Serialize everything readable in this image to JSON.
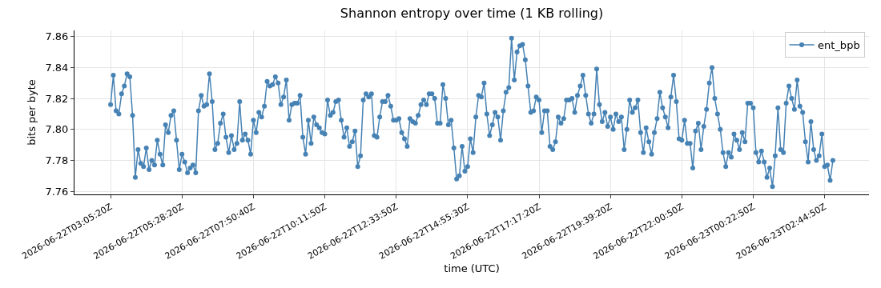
{
  "chart_data": {
    "type": "line",
    "title": "Shannon entropy over time (1 KB rolling)",
    "xlabel": "time (UTC)",
    "ylabel": "bits per byte",
    "categories": [
      "2026-06-22T03:05:20Z",
      null,
      null,
      null,
      null,
      null,
      null,
      null,
      null,
      null,
      null,
      null,
      null,
      null,
      null,
      null,
      null,
      null,
      null,
      null,
      null,
      null,
      null,
      null,
      null,
      null,
      "2026-06-22T05:28:20Z",
      null,
      null,
      null,
      null,
      null,
      null,
      null,
      null,
      null,
      null,
      null,
      null,
      null,
      null,
      null,
      null,
      null,
      null,
      null,
      null,
      null,
      null,
      null,
      null,
      null,
      "2026-06-22T07:50:40Z",
      null,
      null,
      null,
      null,
      null,
      null,
      null,
      null,
      null,
      null,
      null,
      null,
      null,
      null,
      null,
      null,
      null,
      null,
      null,
      null,
      null,
      null,
      null,
      null,
      null,
      "2026-06-22T10:11:50Z",
      null,
      null,
      null,
      null,
      null,
      null,
      null,
      null,
      null,
      null,
      null,
      null,
      null,
      null,
      null,
      null,
      null,
      null,
      null,
      null,
      null,
      null,
      null,
      null,
      null,
      "2026-06-22T12:33:50Z",
      null,
      null,
      null,
      null,
      null,
      null,
      null,
      null,
      null,
      null,
      null,
      null,
      null,
      null,
      null,
      null,
      null,
      null,
      null,
      null,
      null,
      null,
      null,
      null,
      null,
      "2026-06-22T14:55:30Z",
      null,
      null,
      null,
      null,
      null,
      null,
      null,
      null,
      null,
      null,
      null,
      null,
      null,
      null,
      null,
      null,
      null,
      null,
      null,
      null,
      null,
      null,
      null,
      null,
      null,
      "2026-06-22T17:17:20Z",
      null,
      null,
      null,
      null,
      null,
      null,
      null,
      null,
      null,
      null,
      null,
      null,
      null,
      null,
      null,
      null,
      null,
      null,
      null,
      null,
      null,
      null,
      null,
      null,
      null,
      "2026-06-22T19:39:20Z",
      null,
      null,
      null,
      null,
      null,
      null,
      null,
      null,
      null,
      null,
      null,
      null,
      null,
      null,
      null,
      null,
      null,
      null,
      null,
      null,
      null,
      null,
      null,
      null,
      null,
      "2026-06-22T22:00:50Z",
      null,
      null,
      null,
      null,
      null,
      null,
      null,
      null,
      null,
      null,
      null,
      null,
      null,
      null,
      null,
      null,
      null,
      null,
      null,
      null,
      null,
      null,
      null,
      null,
      null,
      "2026-06-23T00:22:50Z",
      null,
      null,
      null,
      null,
      null,
      null,
      null,
      null,
      null,
      null,
      null,
      null,
      null,
      null,
      null,
      null,
      null,
      null,
      null,
      null,
      null,
      null,
      null,
      null,
      null,
      "2026-06-23T02:44:50Z",
      null,
      null,
      null
    ],
    "series": [
      {
        "name": "ent_bpb",
        "color": "#4682b4",
        "values": [
          7.816,
          7.835,
          7.812,
          7.81,
          7.823,
          7.828,
          7.836,
          7.834,
          7.809,
          7.769,
          7.787,
          7.778,
          7.776,
          7.788,
          7.774,
          7.78,
          7.777,
          7.793,
          7.784,
          7.777,
          7.803,
          7.798,
          7.809,
          7.812,
          7.793,
          7.774,
          7.784,
          7.779,
          7.772,
          7.775,
          7.777,
          7.772,
          7.812,
          7.822,
          7.815,
          7.816,
          7.836,
          7.818,
          7.787,
          7.791,
          7.804,
          7.81,
          7.795,
          7.785,
          7.796,
          7.787,
          7.791,
          7.818,
          7.793,
          7.797,
          7.793,
          7.784,
          7.806,
          7.798,
          7.811,
          7.808,
          7.815,
          7.831,
          7.828,
          7.829,
          7.834,
          7.83,
          7.816,
          7.821,
          7.832,
          7.806,
          7.816,
          7.817,
          7.817,
          7.822,
          7.795,
          7.784,
          7.806,
          7.791,
          7.808,
          7.803,
          7.801,
          7.798,
          7.797,
          7.819,
          7.809,
          7.811,
          7.818,
          7.819,
          7.806,
          7.795,
          7.801,
          7.789,
          7.792,
          7.799,
          7.776,
          7.783,
          7.819,
          7.823,
          7.821,
          7.823,
          7.796,
          7.795,
          7.808,
          7.818,
          7.818,
          7.822,
          7.815,
          7.806,
          7.806,
          7.807,
          7.798,
          7.794,
          7.789,
          7.807,
          7.805,
          7.804,
          7.809,
          7.816,
          7.819,
          7.816,
          7.823,
          7.823,
          7.82,
          7.804,
          7.804,
          7.829,
          7.82,
          7.803,
          7.806,
          7.788,
          7.768,
          7.77,
          7.789,
          7.773,
          7.776,
          7.794,
          7.785,
          7.808,
          7.822,
          7.821,
          7.83,
          7.81,
          7.796,
          7.803,
          7.811,
          7.808,
          7.793,
          7.812,
          7.824,
          7.827,
          7.859,
          7.832,
          7.85,
          7.854,
          7.855,
          7.845,
          7.828,
          7.811,
          7.812,
          7.821,
          7.819,
          7.798,
          7.812,
          7.812,
          7.789,
          7.787,
          7.792,
          7.808,
          7.804,
          7.807,
          7.819,
          7.819,
          7.82,
          7.811,
          7.822,
          7.828,
          7.835,
          7.822,
          7.81,
          7.804,
          7.81,
          7.839,
          7.816,
          7.805,
          7.811,
          7.802,
          7.808,
          7.8,
          7.81,
          7.805,
          7.808,
          7.787,
          7.8,
          7.819,
          7.811,
          7.814,
          7.819,
          7.798,
          7.785,
          7.801,
          7.792,
          7.784,
          7.798,
          7.807,
          7.824,
          7.814,
          7.808,
          7.801,
          7.821,
          7.835,
          7.818,
          7.794,
          7.793,
          7.806,
          7.791,
          7.791,
          7.775,
          7.799,
          7.804,
          7.787,
          7.802,
          7.813,
          7.83,
          7.84,
          7.82,
          7.81,
          7.8,
          7.785,
          7.776,
          7.785,
          7.782,
          7.797,
          7.793,
          7.787,
          7.798,
          7.792,
          7.817,
          7.817,
          7.814,
          7.785,
          7.779,
          7.786,
          7.779,
          7.769,
          7.775,
          7.763,
          7.783,
          7.814,
          7.787,
          7.785,
          7.817,
          7.828,
          7.82,
          7.813,
          7.832,
          7.815,
          7.811,
          7.792,
          7.779,
          7.805,
          7.787,
          7.78,
          7.783,
          7.797,
          7.776,
          7.777,
          7.767,
          7.78
        ]
      }
    ],
    "ylim": [
      7.758,
      7.864
    ],
    "yticks": [
      {
        "value": 7.76,
        "label": "7.76"
      },
      {
        "value": 7.78,
        "label": "7.78"
      },
      {
        "value": 7.8,
        "label": "7.80"
      },
      {
        "value": 7.82,
        "label": "7.82"
      },
      {
        "value": 7.84,
        "label": "7.84"
      },
      {
        "value": 7.86,
        "label": "7.86"
      }
    ],
    "grid": true,
    "legend": "top right",
    "marker": "circle",
    "line_style": "solid"
  }
}
